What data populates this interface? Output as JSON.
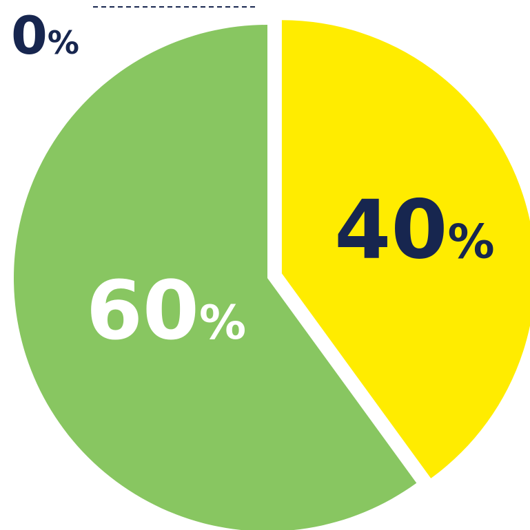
{
  "chart_data": {
    "type": "pie",
    "slices": [
      {
        "label": "40%",
        "value": 40,
        "color": "#FFEC00",
        "text_color": "#17264F",
        "exploded": true
      },
      {
        "label": "60%",
        "value": 60,
        "color": "#88C661",
        "text_color": "#FFFFFF",
        "exploded": false
      }
    ],
    "annotations": [
      {
        "number": "0",
        "unit": "%",
        "color": "#17264F"
      }
    ]
  },
  "colors": {
    "background": "#FFFFFF",
    "dark_navy": "#17264F",
    "dashed_line": "#17264F"
  }
}
